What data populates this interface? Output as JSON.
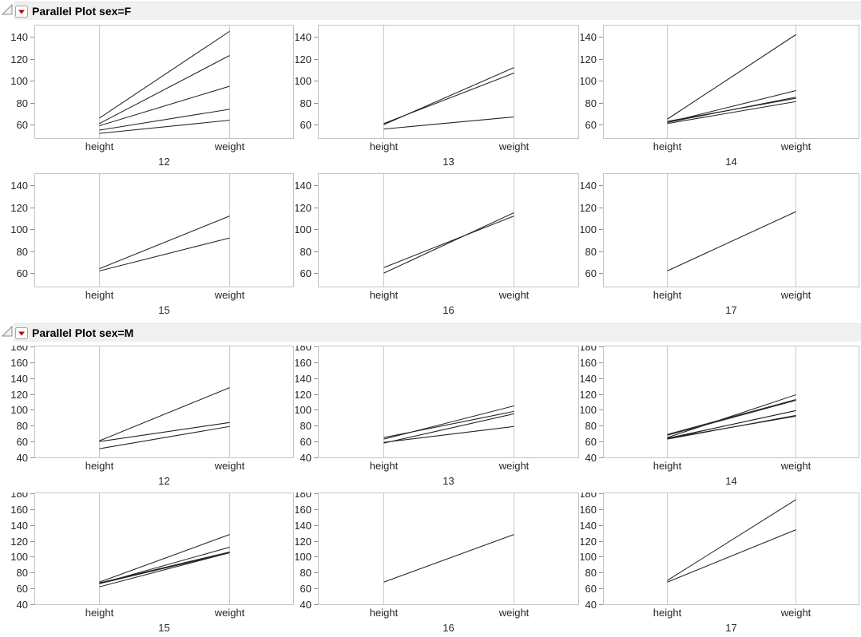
{
  "colors": {
    "header_bg": "#f0f0f0",
    "frame_border": "#c4c4c4",
    "parallel_axis_line": "#c9c9c9",
    "tick_mark": "#8f8f8f",
    "data_line": "#222222",
    "text": "#262626",
    "title_text": "#000000",
    "menu_red": "#c00000",
    "menu_button_border": "#a6a6a6",
    "disclosure_border": "#8c8c8c"
  },
  "header_icons": {
    "disclosure_icon": "disclosure-triangle-open",
    "menu_icon": "red-triangle-menu"
  },
  "chart_data": [
    {
      "type": "line",
      "variant": "parallel-coordinates-small-multiples",
      "title": "Parallel Plot sex=F",
      "axes": [
        "height",
        "weight"
      ],
      "yticks": [
        60,
        80,
        100,
        120,
        140
      ],
      "ylim": [
        47,
        151
      ],
      "legend": "none",
      "panels": [
        {
          "group": "12",
          "lines": [
            {
              "height": 66,
              "weight": 145
            },
            {
              "height": 61,
              "weight": 123
            },
            {
              "height": 59,
              "weight": 95
            },
            {
              "height": 55,
              "weight": 74
            },
            {
              "height": 52,
              "weight": 64
            }
          ]
        },
        {
          "group": "13",
          "lines": [
            {
              "height": 60,
              "weight": 112
            },
            {
              "height": 61,
              "weight": 107
            },
            {
              "height": 56,
              "weight": 67
            }
          ]
        },
        {
          "group": "14",
          "lines": [
            {
              "height": 65,
              "weight": 142
            },
            {
              "height": 62,
              "weight": 91
            },
            {
              "height": 62,
              "weight": 85
            },
            {
              "height": 63,
              "weight": 84
            },
            {
              "height": 61,
              "weight": 81
            }
          ]
        },
        {
          "group": "15",
          "lines": [
            {
              "height": 64,
              "weight": 112
            },
            {
              "height": 62,
              "weight": 92
            }
          ]
        },
        {
          "group": "16",
          "lines": [
            {
              "height": 60,
              "weight": 115
            },
            {
              "height": 65,
              "weight": 112
            }
          ]
        },
        {
          "group": "17",
          "lines": [
            {
              "height": 62,
              "weight": 116
            }
          ]
        }
      ]
    },
    {
      "type": "line",
      "variant": "parallel-coordinates-small-multiples",
      "title": "Parallel Plot sex=M",
      "axes": [
        "height",
        "weight"
      ],
      "yticks": [
        40,
        60,
        80,
        100,
        120,
        140,
        160,
        180
      ],
      "ylim": [
        39,
        181
      ],
      "legend": "none",
      "panels": [
        {
          "group": "12",
          "lines": [
            {
              "height": 61,
              "weight": 128
            },
            {
              "height": 60,
              "weight": 84
            },
            {
              "height": 51,
              "weight": 79
            }
          ]
        },
        {
          "group": "13",
          "lines": [
            {
              "height": 63,
              "weight": 105
            },
            {
              "height": 65,
              "weight": 98
            },
            {
              "height": 58,
              "weight": 95
            },
            {
              "height": 59,
              "weight": 79
            }
          ]
        },
        {
          "group": "14",
          "lines": [
            {
              "height": 65,
              "weight": 119
            },
            {
              "height": 69,
              "weight": 113
            },
            {
              "height": 68,
              "weight": 112
            },
            {
              "height": 64,
              "weight": 99
            },
            {
              "height": 64,
              "weight": 99
            },
            {
              "height": 63,
              "weight": 93
            },
            {
              "height": 64,
              "weight": 92
            }
          ]
        },
        {
          "group": "15",
          "lines": [
            {
              "height": 68,
              "weight": 128
            },
            {
              "height": 66,
              "weight": 112
            },
            {
              "height": 67,
              "weight": 106
            },
            {
              "height": 66,
              "weight": 105
            },
            {
              "height": 62,
              "weight": 105
            }
          ]
        },
        {
          "group": "16",
          "lines": [
            {
              "height": 68,
              "weight": 128
            }
          ]
        },
        {
          "group": "17",
          "lines": [
            {
              "height": 70,
              "weight": 172
            },
            {
              "height": 68,
              "weight": 134
            }
          ]
        }
      ]
    }
  ]
}
